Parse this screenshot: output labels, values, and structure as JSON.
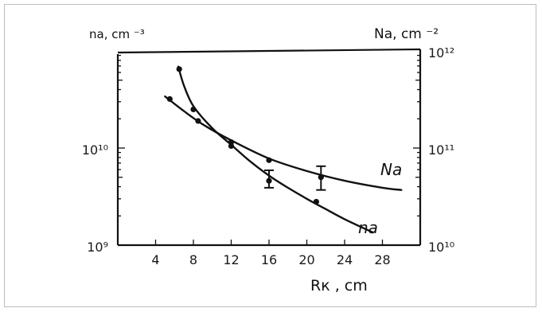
{
  "chart_data": {
    "type": "line",
    "left_axis_label": "na, cm ⁻³",
    "right_axis_label": "Na, cm ⁻²",
    "xlabel": "Rк , cm",
    "x_ticks": [
      "4",
      "8",
      "12",
      "16",
      "20",
      "24",
      "28"
    ],
    "left_ticks": [
      {
        "label": "10⁹",
        "value": 1000000000.0
      },
      {
        "label": "10¹⁰",
        "value": 10000000000.0
      }
    ],
    "right_ticks": [
      {
        "label": "10¹⁰",
        "value": 10000000000.0
      },
      {
        "label": "10¹¹",
        "value": 100000000000.0
      },
      {
        "label": "10¹²",
        "value": 1000000000000.0
      }
    ],
    "xlim": [
      0,
      32
    ],
    "ylim_left": [
      1000000000.0,
      100000000000.0
    ],
    "ylim_right": [
      10000000000.0,
      1000000000000.0
    ],
    "yscale": "log",
    "series": [
      {
        "name": "Na",
        "axis": "right",
        "points": [
          [
            5.5,
            320000000000.0
          ],
          [
            8.5,
            190000000000.0
          ],
          [
            12,
            115000000000.0
          ],
          [
            16,
            75000000000.0
          ],
          [
            21.5,
            50000000000.0
          ]
        ],
        "curve": [
          [
            5,
            340000000000.0
          ],
          [
            7,
            240000000000.0
          ],
          [
            9,
            175000000000.0
          ],
          [
            12,
            120000000000.0
          ],
          [
            16,
            78000000000.0
          ],
          [
            20,
            58000000000.0
          ],
          [
            24,
            46000000000.0
          ],
          [
            28,
            39000000000.0
          ],
          [
            30,
            37000000000.0
          ]
        ],
        "error_bars": [
          {
            "x": 21.5,
            "low": 37000000000.0,
            "high": 65000000000.0
          }
        ]
      },
      {
        "name": "na",
        "axis": "left",
        "points": [
          [
            6.5,
            65000000000.0
          ],
          [
            8,
            25000000000.0
          ],
          [
            12,
            10500000000.0
          ],
          [
            16,
            4600000000.0
          ],
          [
            21,
            2800000000.0
          ]
        ],
        "curve": [
          [
            6.4,
            69000000000.0
          ],
          [
            7,
            44000000000.0
          ],
          [
            8,
            27000000000.0
          ],
          [
            10,
            16000000000.0
          ],
          [
            12,
            10800000000.0
          ],
          [
            14,
            7300000000.0
          ],
          [
            16,
            5200000000.0
          ],
          [
            18,
            3900000000.0
          ],
          [
            20,
            3000000000.0
          ],
          [
            22,
            2350000000.0
          ],
          [
            24,
            1850000000.0
          ],
          [
            27,
            1350000000.0
          ]
        ],
        "error_bars": [
          {
            "x": 16,
            "low": 3900000000.0,
            "high": 5900000000.0
          }
        ]
      }
    ],
    "series_labels": {
      "Na": "Nа",
      "na": "nа"
    },
    "grid": false
  }
}
